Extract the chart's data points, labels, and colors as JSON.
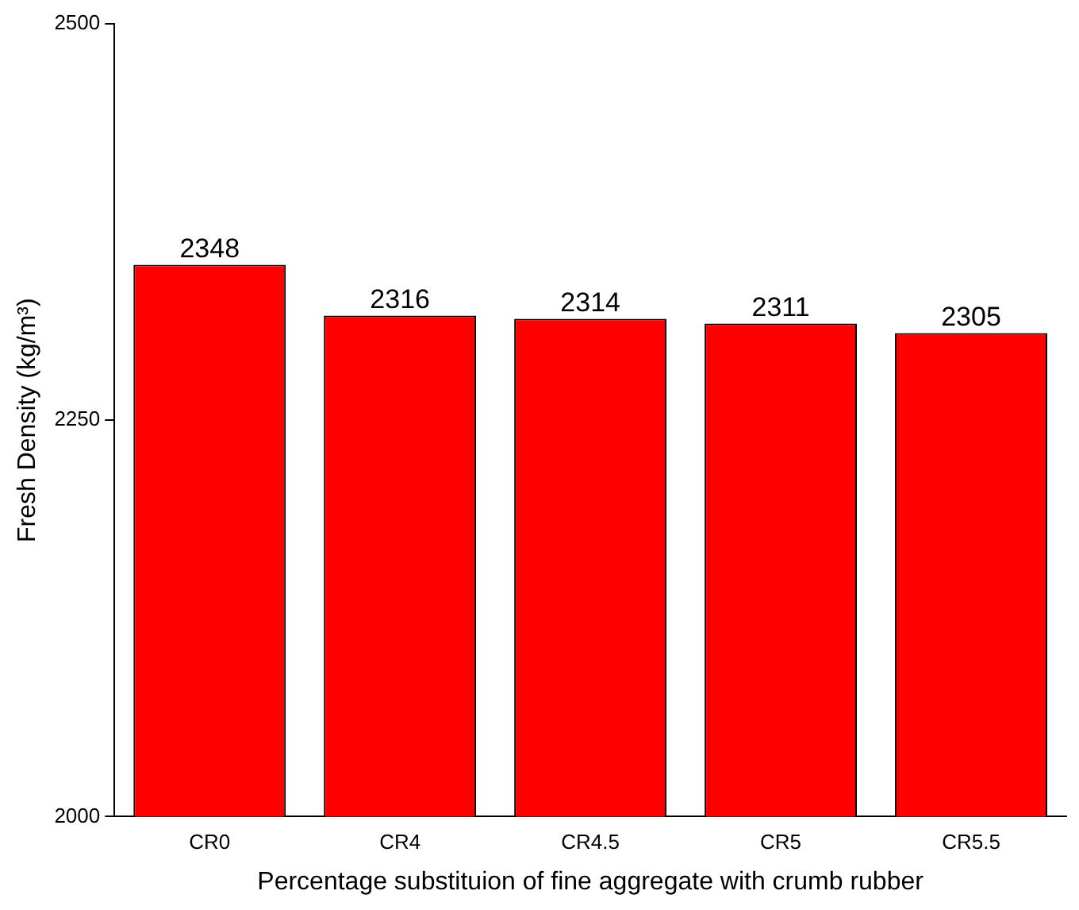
{
  "chart_data": {
    "type": "bar",
    "xlabel": "Percentage substituion of fine aggregate with crumb rubber",
    "ylabel": "Fresh Density (kg/m³)",
    "categories": [
      "CR0",
      "CR4",
      "CR4.5",
      "CR5",
      "CR5.5"
    ],
    "values": [
      2348,
      2316,
      2314,
      2311,
      2305
    ],
    "color": "#ff0000",
    "ylim": [
      2000,
      2500
    ],
    "yticks": [
      2000,
      2250,
      2500
    ],
    "grid": false,
    "legend": false,
    "data_labels": true
  }
}
